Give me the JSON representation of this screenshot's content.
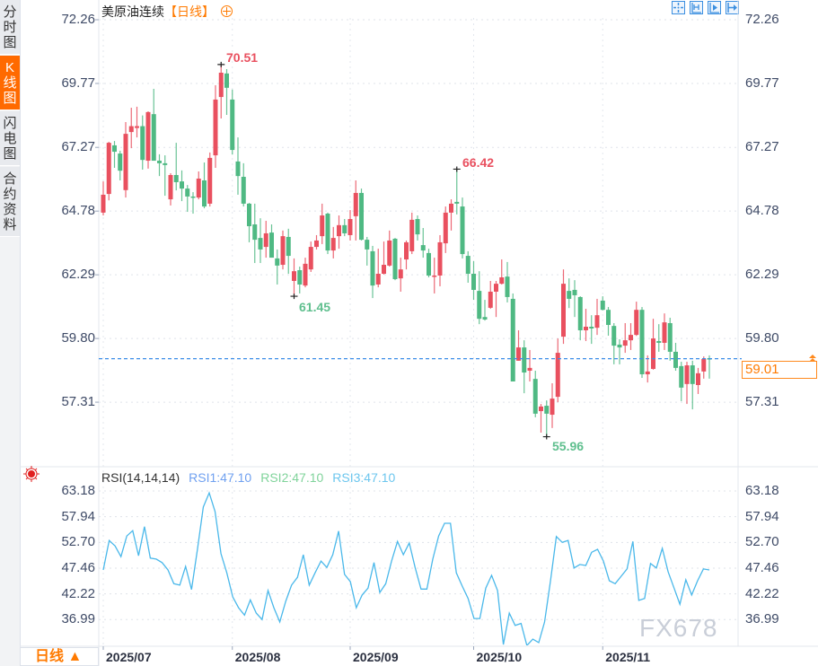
{
  "sidebar": {
    "tabs": [
      {
        "label": "分时图",
        "active": false
      },
      {
        "label": "K线图",
        "active": true
      },
      {
        "label": "闪电图",
        "active": false
      },
      {
        "label": "合约资料",
        "active": false
      }
    ]
  },
  "header": {
    "symbol": "美原油连续",
    "period": "【日线】",
    "toggle_icon": "circle-plus-icon",
    "tools": [
      "crosshair-icon",
      "zoom-range-icon",
      "play-icon",
      "exit-icon"
    ]
  },
  "colors": {
    "up": "#e9505f",
    "down": "#4fb983",
    "rsi_line": "#4ab8ea",
    "last_price_line": "#3d8ee8",
    "accent": "#ff7a00"
  },
  "price_axis": {
    "ticks": [
      "72.26",
      "69.77",
      "67.27",
      "64.78",
      "62.29",
      "59.80",
      "57.31"
    ],
    "last_price": "59.01"
  },
  "annotations": {
    "high": "70.51",
    "local_high": "66.42",
    "local_low": "61.45",
    "low": "55.96"
  },
  "chart_data": [
    {
      "type": "candlestick",
      "ylim": [
        55.5,
        72.26
      ],
      "ohlc": [
        [
          64.72,
          65.94,
          64.61,
          65.42
        ],
        [
          65.45,
          67.49,
          65.2,
          67.45
        ],
        [
          67.35,
          67.52,
          66.47,
          67.1
        ],
        [
          67.03,
          67.14,
          65.98,
          66.36
        ],
        [
          65.6,
          68.26,
          65.31,
          67.8
        ],
        [
          67.87,
          68.82,
          67.24,
          68.1
        ],
        [
          68.03,
          68.86,
          67.66,
          68.1
        ],
        [
          68.1,
          68.52,
          66.4,
          66.78
        ],
        [
          66.75,
          68.68,
          66.44,
          68.65
        ],
        [
          68.57,
          69.56,
          66.75,
          66.75
        ],
        [
          66.75,
          67.0,
          66.15,
          66.65
        ],
        [
          66.65,
          66.96,
          65.38,
          66.58
        ],
        [
          65.24,
          66.26,
          65.0,
          66.19
        ],
        [
          66.19,
          67.45,
          65.59,
          65.91
        ],
        [
          65.94,
          66.37,
          65.17,
          65.66
        ],
        [
          65.66,
          65.8,
          64.75,
          65.35
        ],
        [
          65.35,
          65.52,
          64.68,
          65.31
        ],
        [
          65.31,
          66.33,
          65.24,
          66.05
        ],
        [
          65.98,
          66.68,
          64.89,
          64.96
        ],
        [
          65.07,
          67.07,
          64.96,
          66.86
        ],
        [
          66.96,
          69.7,
          66.47,
          69.14
        ],
        [
          69.24,
          70.51,
          68.4,
          70.19
        ],
        [
          70.16,
          70.33,
          68.54,
          69.6
        ],
        [
          69.14,
          69.53,
          66.99,
          67.17
        ],
        [
          66.72,
          67.66,
          65.42,
          66.15
        ],
        [
          66.12,
          66.65,
          64.96,
          65.07
        ],
        [
          65.07,
          65.1,
          63.56,
          64.19
        ],
        [
          64.26,
          65.07,
          62.75,
          63.66
        ],
        [
          63.73,
          64.5,
          62.75,
          63.28
        ],
        [
          63.38,
          64.4,
          62.96,
          63.91
        ],
        [
          63.94,
          64.26,
          62.96,
          62.96
        ],
        [
          62.93,
          63.28,
          61.91,
          62.65
        ],
        [
          62.68,
          64.02,
          62.5,
          63.8
        ],
        [
          63.77,
          64.09,
          62.33,
          63.03
        ],
        [
          62.05,
          62.93,
          61.45,
          62.43
        ],
        [
          62.47,
          62.61,
          61.56,
          61.91
        ],
        [
          61.87,
          62.96,
          61.8,
          62.72
        ],
        [
          62.5,
          63.59,
          62.4,
          63.38
        ],
        [
          63.38,
          63.84,
          63.28,
          63.63
        ],
        [
          63.8,
          65.07,
          63.49,
          64.61
        ],
        [
          64.68,
          64.72,
          63.1,
          63.24
        ],
        [
          63.24,
          64.16,
          62.93,
          63.73
        ],
        [
          63.8,
          64.61,
          63.31,
          64.23
        ],
        [
          64.23,
          64.47,
          63.8,
          63.91
        ],
        [
          63.84,
          64.82,
          63.63,
          64.47
        ],
        [
          64.58,
          65.98,
          63.63,
          65.49
        ],
        [
          65.49,
          65.66,
          63.63,
          63.66
        ],
        [
          63.66,
          63.77,
          62.65,
          63.28
        ],
        [
          63.21,
          63.42,
          61.38,
          61.87
        ],
        [
          61.91,
          63.31,
          61.8,
          62.33
        ],
        [
          62.33,
          63.59,
          62.3,
          62.68
        ],
        [
          62.65,
          64.02,
          62.61,
          63.63
        ],
        [
          63.7,
          63.73,
          62.08,
          62.12
        ],
        [
          62.15,
          62.96,
          61.63,
          62.5
        ],
        [
          62.89,
          63.63,
          62.5,
          63.56
        ],
        [
          63.21,
          64.72,
          63.1,
          64.44
        ],
        [
          64.47,
          64.61,
          63.63,
          63.87
        ],
        [
          63.45,
          64.12,
          62.96,
          63.24
        ],
        [
          63.14,
          63.31,
          62.19,
          62.26
        ],
        [
          62.22,
          62.96,
          61.56,
          62.26
        ],
        [
          62.26,
          63.84,
          61.84,
          63.56
        ],
        [
          63.52,
          64.96,
          63.14,
          64.72
        ],
        [
          64.72,
          65.24,
          64.02,
          65.07
        ],
        [
          65.14,
          66.42,
          64.65,
          65.07
        ],
        [
          64.96,
          65.31,
          62.93,
          63.1
        ],
        [
          63.03,
          63.21,
          61.98,
          62.33
        ],
        [
          62.33,
          62.82,
          61.31,
          61.7
        ],
        [
          61.66,
          62.43,
          60.36,
          60.57
        ],
        [
          60.64,
          61.31,
          60.5,
          60.54
        ],
        [
          61.0,
          62.05,
          60.96,
          61.63
        ],
        [
          61.63,
          62.05,
          60.64,
          61.94
        ],
        [
          61.94,
          62.89,
          61.91,
          62.19
        ],
        [
          62.22,
          62.79,
          61.21,
          61.42
        ],
        [
          61.35,
          61.56,
          58.12,
          58.12
        ],
        [
          58.93,
          60.12,
          58.93,
          59.45
        ],
        [
          59.45,
          59.73,
          57.66,
          58.47
        ],
        [
          58.54,
          59.35,
          58.12,
          58.65
        ],
        [
          58.22,
          58.54,
          56.72,
          56.86
        ],
        [
          56.96,
          57.24,
          56.12,
          57.14
        ],
        [
          57.17,
          57.38,
          55.96,
          56.86
        ],
        [
          56.82,
          58.05,
          56.3,
          57.45
        ],
        [
          57.52,
          59.8,
          57.31,
          59.24
        ],
        [
          59.87,
          62.5,
          59.59,
          61.94
        ],
        [
          61.66,
          62.15,
          60.99,
          61.35
        ],
        [
          61.7,
          62.08,
          60.64,
          61.49
        ],
        [
          61.42,
          61.45,
          59.73,
          60.12
        ],
        [
          60.12,
          60.96,
          59.7,
          60.26
        ],
        [
          60.26,
          60.71,
          59.59,
          60.19
        ],
        [
          60.22,
          61.35,
          59.94,
          60.71
        ],
        [
          61.28,
          61.45,
          60.9,
          60.92
        ],
        [
          60.92,
          61.03,
          59.91,
          60.33
        ],
        [
          60.29,
          60.4,
          58.79,
          59.52
        ],
        [
          59.56,
          59.77,
          58.79,
          59.45
        ],
        [
          59.52,
          60.4,
          59.24,
          59.73
        ],
        [
          59.73,
          60.4,
          59.35,
          59.94
        ],
        [
          59.94,
          61.24,
          59.9,
          60.92
        ],
        [
          60.92,
          61.03,
          58.26,
          58.4
        ],
        [
          58.4,
          59.14,
          58.08,
          58.51
        ],
        [
          58.61,
          60.57,
          58.58,
          59.8
        ],
        [
          59.7,
          60.36,
          59.28,
          59.63
        ],
        [
          59.63,
          60.78,
          59.35,
          60.43
        ],
        [
          60.4,
          60.61,
          58.93,
          59.28
        ],
        [
          59.28,
          59.63,
          58.54,
          58.65
        ],
        [
          58.72,
          58.89,
          57.35,
          57.88
        ],
        [
          58.02,
          58.89,
          57.24,
          58.75
        ],
        [
          58.75,
          58.93,
          57.03,
          58.02
        ],
        [
          57.98,
          58.65,
          57.63,
          58.44
        ],
        [
          58.51,
          59.1,
          58.23,
          59.0
        ],
        [
          59.03,
          59.14,
          58.23,
          59.01
        ]
      ],
      "x_ticks": [
        {
          "label": "2025/07",
          "index": 0
        },
        {
          "label": "2025/08",
          "index": 23
        },
        {
          "label": "2025/09",
          "index": 44
        },
        {
          "label": "2025/10",
          "index": 66
        },
        {
          "label": "2025/11",
          "index": 89
        }
      ]
    },
    {
      "type": "line",
      "title": "RSI(14,14,14)",
      "legend": [
        "RSI1:47.10",
        "RSI2:47.10",
        "RSI3:47.10"
      ],
      "y_ticks": [
        "63.18",
        "57.94",
        "52.70",
        "47.46",
        "42.22",
        "36.99"
      ],
      "ylim": [
        32,
        63.18
      ],
      "values": [
        47.1,
        53.1,
        52.0,
        49.8,
        54.0,
        55.1,
        50.0,
        55.9,
        49.5,
        49.3,
        48.6,
        47.1,
        44.3,
        44.0,
        47.8,
        43.1,
        51.3,
        59.9,
        62.8,
        59.0,
        50.4,
        46.5,
        41.6,
        39.4,
        37.9,
        41.0,
        38.3,
        37.0,
        42.9,
        39.4,
        36.5,
        40.7,
        44.0,
        45.6,
        50.2,
        44.0,
        46.5,
        48.9,
        47.6,
        50.2,
        55.0,
        46.2,
        44.7,
        39.4,
        42.0,
        43.4,
        48.6,
        42.5,
        44.3,
        48.9,
        52.9,
        50.2,
        52.6,
        47.6,
        43.2,
        43.2,
        49.3,
        54.0,
        56.6,
        56.6,
        46.5,
        43.8,
        41.3,
        37.2,
        37.2,
        43.4,
        46.0,
        42.9,
        31.9,
        38.3,
        35.8,
        36.2,
        31.7,
        33.0,
        32.3,
        36.5,
        44.9,
        53.9,
        52.7,
        53.1,
        47.5,
        48.2,
        48.0,
        50.7,
        51.3,
        48.9,
        44.9,
        44.3,
        45.8,
        47.3,
        52.9,
        40.9,
        41.3,
        48.4,
        47.5,
        51.5,
        46.7,
        43.4,
        40.1,
        45.1,
        42.0,
        44.9,
        47.3,
        47.1
      ]
    }
  ],
  "rsi": {
    "indicator_icon": "sun-indicator-icon"
  },
  "footer": {
    "period_button": "日线 ▲",
    "watermark": "FX678"
  }
}
